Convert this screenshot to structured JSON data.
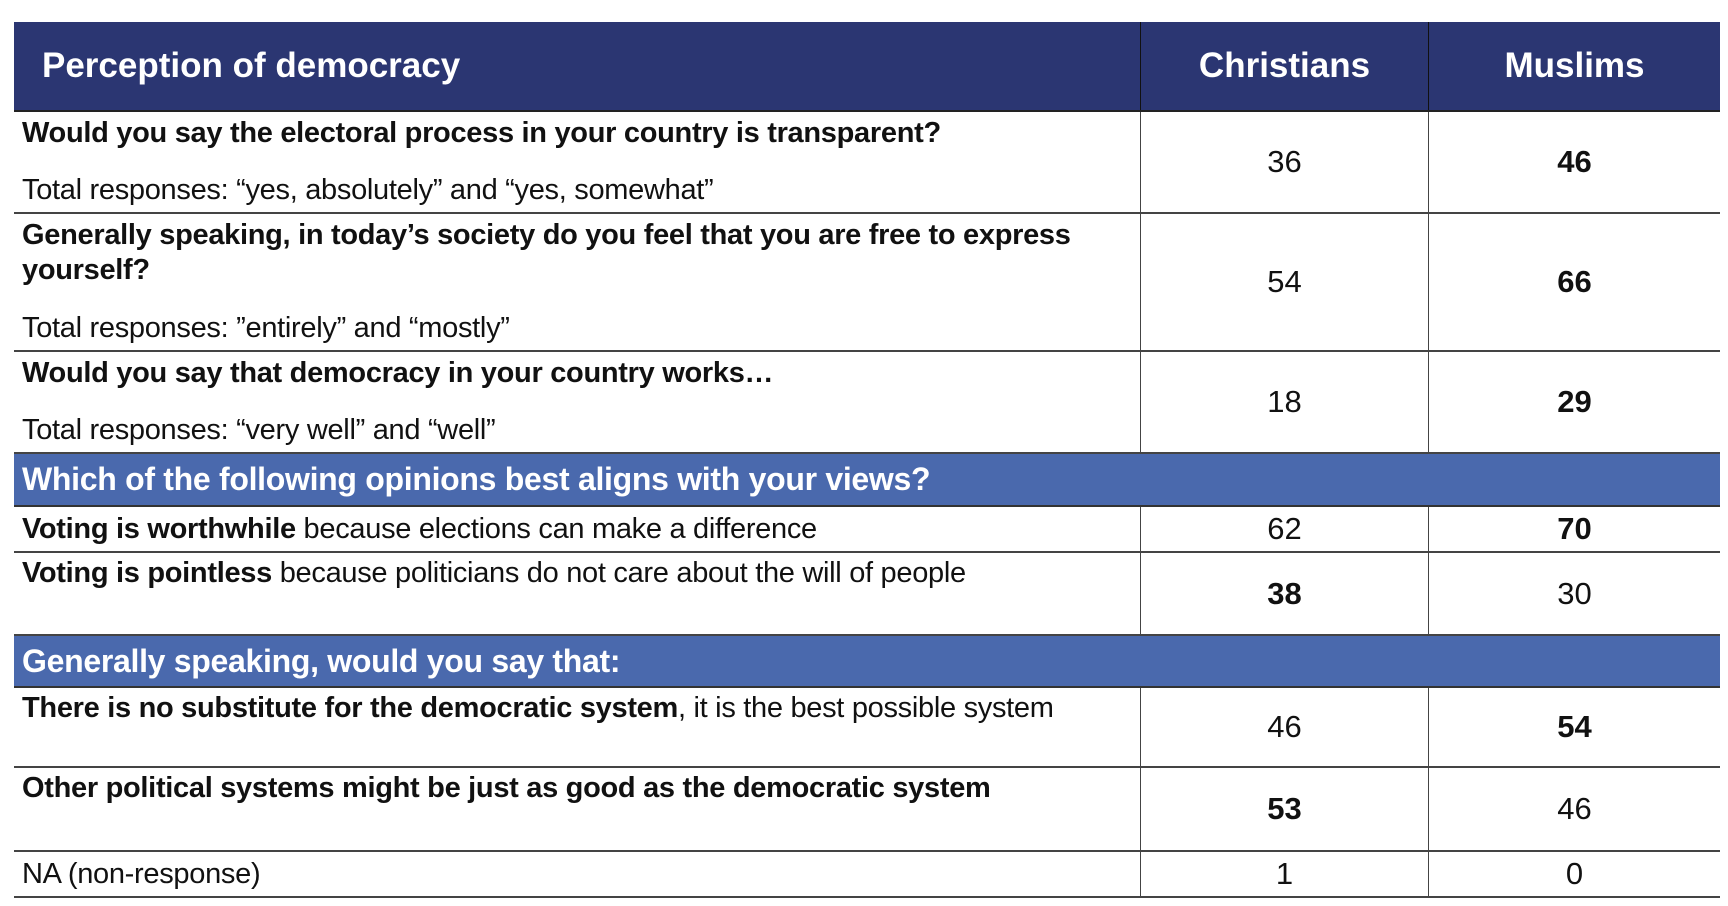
{
  "header": {
    "title": "Perception of democracy",
    "col1": "Christians",
    "col2": "Muslims"
  },
  "rows_a": [
    {
      "question": "Would you say the electoral process in your country is transparent?",
      "note": "Total responses: “yes, absolutely” and “yes, somewhat”",
      "christians": "36",
      "muslims": "46",
      "bold": "muslims"
    },
    {
      "question": "Generally speaking, in today’s society do you feel that you are free to express yourself?",
      "note": "Total responses: ”entirely” and “mostly”",
      "christians": "54",
      "muslims": "66",
      "bold": "muslims"
    },
    {
      "question": "Would you say that democracy in your country works…",
      "note": "Total responses: “very well” and “well”",
      "christians": "18",
      "muslims": "29",
      "bold": "muslims"
    }
  ],
  "section1": "Which of the following opinions best aligns with your views?",
  "rows_b": [
    {
      "bold_text": "Voting is worthwhile",
      "text": " because elections can make a difference",
      "christians": "62",
      "muslims": "70"
    },
    {
      "bold_text": "Voting is pointless",
      "text": " because politicians do not care about the will of people",
      "christians": "38",
      "muslims": "30"
    }
  ],
  "section2": "Generally speaking, would you say that:",
  "rows_c": [
    {
      "bold_text": "There is no substitute for the democratic system",
      "text": ", it is the best possible system",
      "christians": "46",
      "muslims": "54"
    },
    {
      "bold_text": "Other political systems might be just as good as the democratic system",
      "text": "",
      "christians": "53",
      "muslims": "46"
    },
    {
      "bold_text": "",
      "text": "NA (non-response)",
      "christians": "1",
      "muslims": "0"
    }
  ]
}
